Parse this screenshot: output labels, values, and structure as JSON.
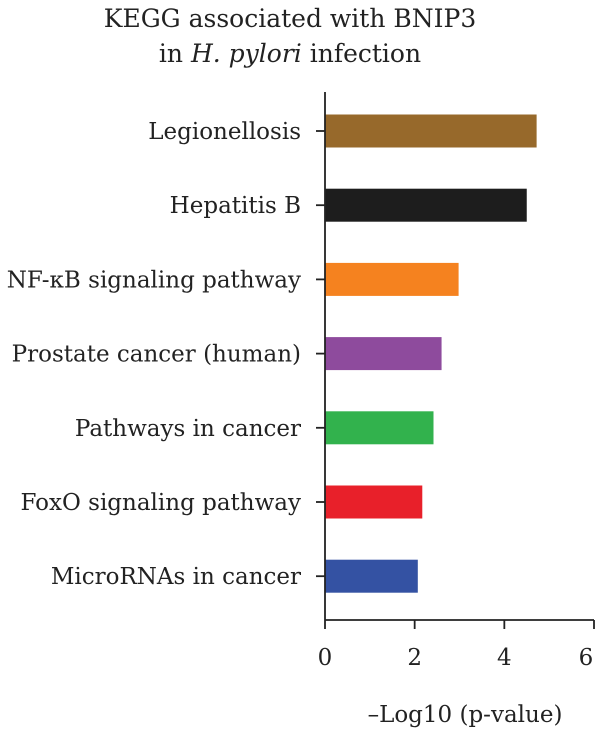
{
  "chart_data": {
    "type": "bar",
    "orientation": "horizontal",
    "title_line1": "KEGG associated with BNIP3",
    "title_line2_prefix": "in ",
    "title_line2_italic": "H. pylori",
    "title_line2_suffix": " infection",
    "xlabel": "–Log10 (p-value)",
    "ylabel": "",
    "xlim": [
      0,
      6
    ],
    "xticks": [
      0,
      2,
      4,
      6
    ],
    "grid": false,
    "categories": [
      "Legionellosis",
      "Hepatitis B",
      "NF-κB signaling pathway",
      "Prostate cancer (human)",
      "Pathways in cancer",
      "FoxO signaling pathway",
      "MicroRNAs in cancer"
    ],
    "values": [
      4.72,
      4.5,
      2.98,
      2.6,
      2.42,
      2.17,
      2.07
    ],
    "colors": [
      "#97692b",
      "#1d1d1d",
      "#f5821f",
      "#8e4b9d",
      "#32b24d",
      "#e8202a",
      "#3452a3"
    ]
  }
}
